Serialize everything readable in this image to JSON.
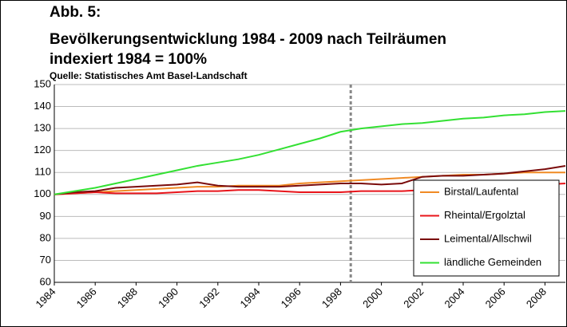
{
  "chart_data": {
    "type": "line",
    "label": "Abb. 5:",
    "title": "Bevölkerungsentwicklung 1984 - 2009 nach Teilräumen",
    "subtitle": "indexiert 1984 = 100%",
    "source": "Quelle: Statistisches Amt Basel-Landschaft",
    "x": [
      1984,
      1985,
      1986,
      1987,
      1988,
      1989,
      1990,
      1991,
      1992,
      1993,
      1994,
      1995,
      1996,
      1997,
      1998,
      1999,
      2000,
      2001,
      2002,
      2003,
      2004,
      2005,
      2006,
      2007,
      2008,
      2009
    ],
    "series": [
      {
        "name": "Birstal/Laufental",
        "color": "#f08a24",
        "values": [
          100,
          100.5,
          101,
          101.5,
          102,
          102.5,
          103,
          103.5,
          103.5,
          104,
          104,
          104,
          105,
          105.5,
          106,
          106.5,
          107,
          107.5,
          108,
          108.5,
          109,
          109,
          109.5,
          110,
          110,
          110
        ]
      },
      {
        "name": "Rheintal/Ergolztal",
        "color": "#e8141a",
        "values": [
          100,
          100.5,
          101,
          100.5,
          100.5,
          100.5,
          101,
          101.5,
          101.5,
          102,
          102,
          101.5,
          101,
          101,
          101,
          101.5,
          101.5,
          101.5,
          102,
          102.5,
          103,
          103,
          103.5,
          104,
          104.5,
          105
        ]
      },
      {
        "name": "Leimental/Allschwil",
        "color": "#7a0b0b",
        "values": [
          100,
          101,
          101.5,
          103,
          103.5,
          104,
          104.5,
          105.5,
          104,
          103.5,
          103.5,
          103.5,
          104,
          104.5,
          105,
          105,
          104.5,
          105,
          108,
          108.5,
          108.5,
          109,
          109.5,
          110.5,
          111.5,
          113
        ]
      },
      {
        "name": "ländliche Gemeinden",
        "color": "#33e033",
        "values": [
          100,
          101.5,
          103,
          105,
          107,
          109,
          111,
          113,
          114.5,
          116,
          118,
          120.5,
          123,
          125.5,
          128.5,
          130,
          131,
          132,
          132.5,
          133.5,
          134.5,
          135,
          136,
          136.5,
          137.5,
          138
        ]
      }
    ],
    "xlim": [
      1984,
      2009
    ],
    "xticks": [
      1984,
      1986,
      1988,
      1990,
      1992,
      1994,
      1996,
      1998,
      2000,
      2002,
      2004,
      2006,
      2008
    ],
    "ylim": [
      60,
      150
    ],
    "yticks": [
      60,
      70,
      80,
      90,
      100,
      110,
      120,
      130,
      140,
      150
    ],
    "vline": 1998.5,
    "grid": true,
    "legend": "lower right"
  }
}
